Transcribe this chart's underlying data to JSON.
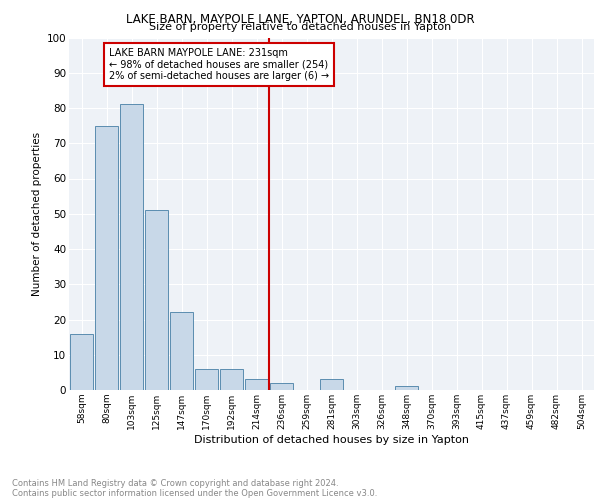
{
  "title": "LAKE BARN, MAYPOLE LANE, YAPTON, ARUNDEL, BN18 0DR",
  "subtitle": "Size of property relative to detached houses in Yapton",
  "xlabel": "Distribution of detached houses by size in Yapton",
  "ylabel": "Number of detached properties",
  "bar_labels": [
    "58sqm",
    "80sqm",
    "103sqm",
    "125sqm",
    "147sqm",
    "170sqm",
    "192sqm",
    "214sqm",
    "236sqm",
    "259sqm",
    "281sqm",
    "303sqm",
    "326sqm",
    "348sqm",
    "370sqm",
    "393sqm",
    "415sqm",
    "437sqm",
    "459sqm",
    "482sqm",
    "504sqm"
  ],
  "bar_values": [
    16,
    75,
    81,
    51,
    22,
    6,
    6,
    3,
    2,
    0,
    3,
    0,
    0,
    1,
    0,
    0,
    0,
    0,
    0,
    0,
    0
  ],
  "bar_color": "#c8d8e8",
  "bar_edge_color": "#5b8db0",
  "vline_color": "#cc0000",
  "annotation_text": "LAKE BARN MAYPOLE LANE: 231sqm\n← 98% of detached houses are smaller (254)\n2% of semi-detached houses are larger (6) →",
  "annotation_box_color": "#ffffff",
  "annotation_box_edge": "#cc0000",
  "background_color": "#eef2f7",
  "grid_color": "#ffffff",
  "footnote_line1": "Contains HM Land Registry data © Crown copyright and database right 2024.",
  "footnote_line2": "Contains public sector information licensed under the Open Government Licence v3.0.",
  "ylim": [
    0,
    100
  ],
  "yticks": [
    0,
    10,
    20,
    30,
    40,
    50,
    60,
    70,
    80,
    90,
    100
  ]
}
